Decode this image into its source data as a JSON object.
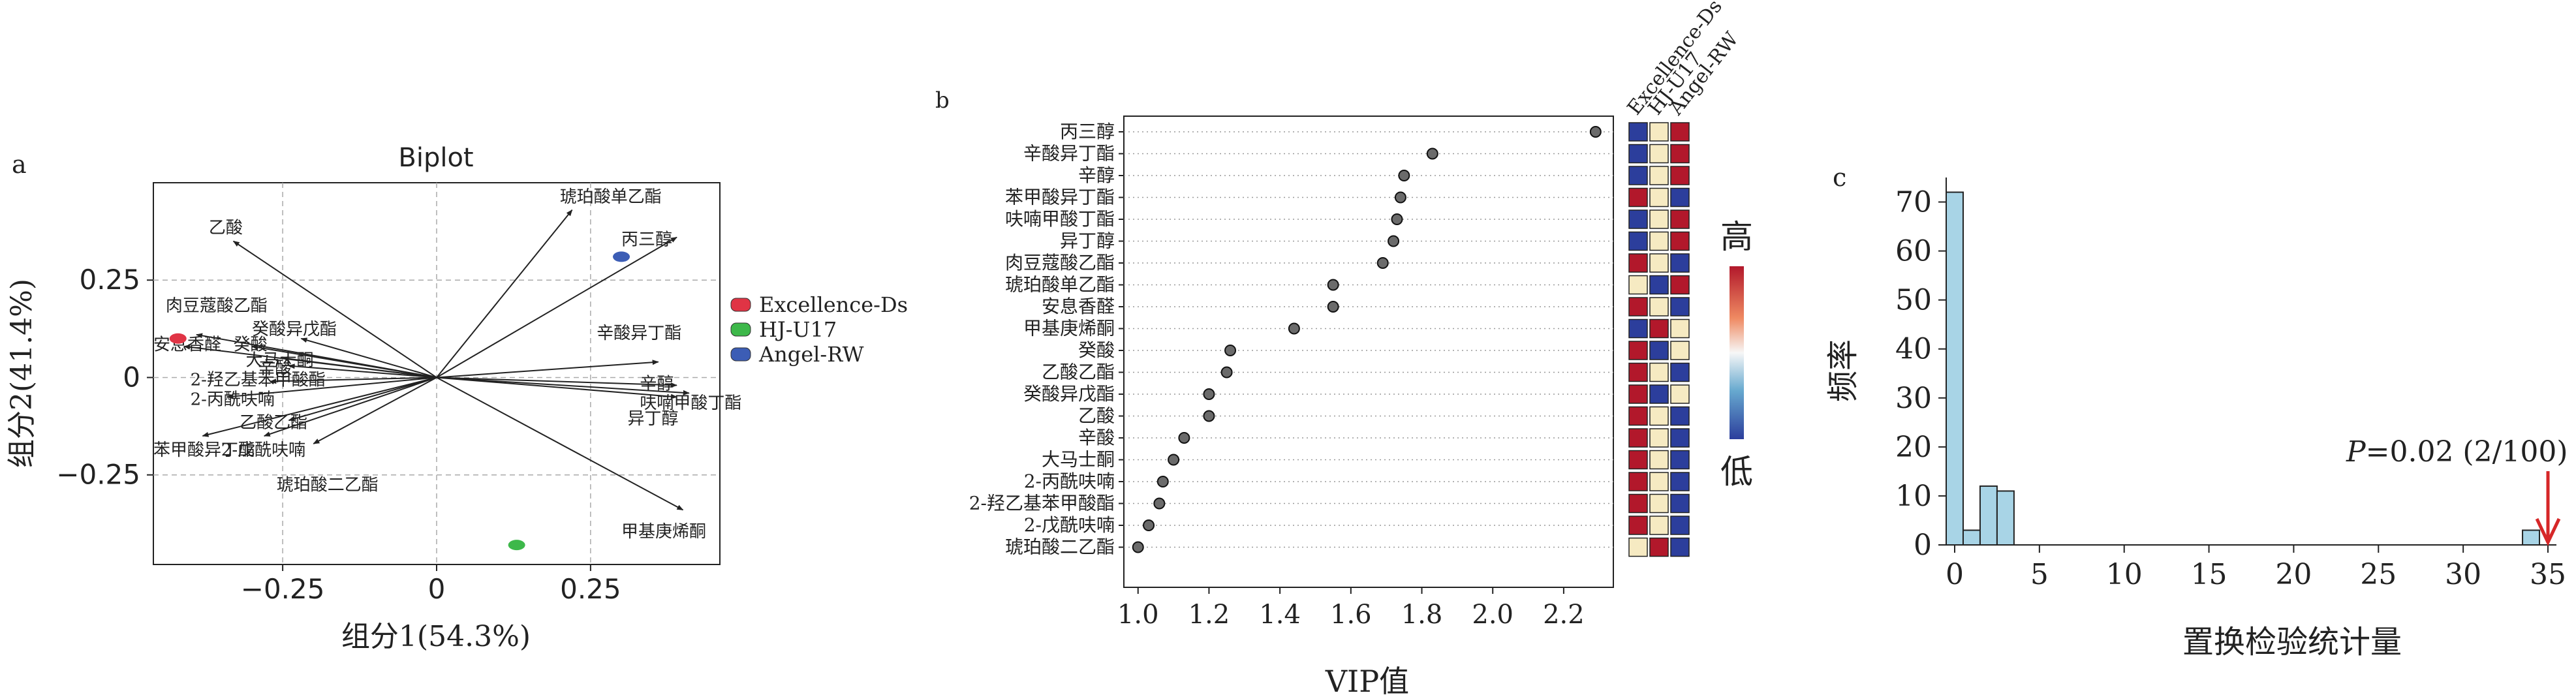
{
  "panel_a": {
    "panel_label": "a",
    "chart_data": {
      "type": "scatter",
      "title": "Biplot",
      "xlabel": "组分1(54.3%)",
      "ylabel": "组分2(41.4%)",
      "xlim": [
        -0.46,
        0.46
      ],
      "ylim": [
        -0.48,
        0.5
      ],
      "xticks": [
        -0.25,
        0,
        0.25
      ],
      "xtick_labels": [
        "−0.25",
        "0",
        "0.25"
      ],
      "yticks": [
        0.25,
        0,
        -0.25
      ],
      "ytick_labels": [
        "0.25",
        "0",
        "−0.25"
      ],
      "grid": "dashed",
      "legend": [
        {
          "name": "Excellence-Ds",
          "color": "#e03445"
        },
        {
          "name": "HJ-U17",
          "color": "#3db84a"
        },
        {
          "name": "Angel-RW",
          "color": "#3c5db5"
        }
      ],
      "points": [
        {
          "series": "Excellence-Ds",
          "x": -0.42,
          "y": 0.1
        },
        {
          "series": "HJ-U17",
          "x": 0.13,
          "y": -0.43
        },
        {
          "series": "Angel-RW",
          "x": 0.3,
          "y": 0.31
        }
      ],
      "loadings": [
        {
          "label": "琥珀酸单乙酯",
          "x": 0.22,
          "y": 0.43,
          "lx": 0.2,
          "ly": 0.45
        },
        {
          "label": "丙三醇",
          "x": 0.39,
          "y": 0.36,
          "lx": 0.3,
          "ly": 0.34
        },
        {
          "label": "乙酸",
          "x": -0.33,
          "y": 0.35,
          "lx": -0.37,
          "ly": 0.37
        },
        {
          "label": "肉豆蔻酸乙酯",
          "x": -0.39,
          "y": 0.11,
          "lx": -0.44,
          "ly": 0.17
        },
        {
          "label": "癸酸异戊酯",
          "x": -0.22,
          "y": 0.1,
          "lx": -0.3,
          "ly": 0.11
        },
        {
          "label": "安息香醛",
          "x": -0.41,
          "y": 0.08,
          "lx": -0.46,
          "ly": 0.07
        },
        {
          "label": "癸酸",
          "x": -0.3,
          "y": 0.08,
          "lx": -0.33,
          "ly": 0.07
        },
        {
          "label": "大马士酮",
          "x": -0.25,
          "y": 0.05,
          "lx": -0.31,
          "ly": 0.03
        },
        {
          "label": "辛酸",
          "x": -0.24,
          "y": 0.03,
          "lx": -0.29,
          "ly": 0.01
        },
        {
          "label": "2-羟乙基苯甲酸酯",
          "x": -0.27,
          "y": -0.01,
          "lx": -0.4,
          "ly": -0.02
        },
        {
          "label": "2-丙酰呋喃",
          "x": -0.34,
          "y": -0.05,
          "lx": -0.4,
          "ly": -0.07
        },
        {
          "label": "乙酸乙酯",
          "x": -0.24,
          "y": -0.11,
          "lx": -0.32,
          "ly": -0.13
        },
        {
          "label": "苯甲酸异丁酯",
          "x": -0.38,
          "y": -0.15,
          "lx": -0.46,
          "ly": -0.2
        },
        {
          "label": "2-戊酰呋喃",
          "x": -0.28,
          "y": -0.15,
          "lx": -0.35,
          "ly": -0.2
        },
        {
          "label": "琥珀酸二乙酯",
          "x": -0.2,
          "y": -0.17,
          "lx": -0.26,
          "ly": -0.29
        },
        {
          "label": "辛酸异丁酯",
          "x": 0.36,
          "y": 0.04,
          "lx": 0.26,
          "ly": 0.1
        },
        {
          "label": "辛醇",
          "x": 0.39,
          "y": -0.02,
          "lx": 0.33,
          "ly": -0.03
        },
        {
          "label": "呋喃甲酸丁酯",
          "x": 0.41,
          "y": -0.04,
          "lx": 0.33,
          "ly": -0.08
        },
        {
          "label": "异丁醇",
          "x": 0.39,
          "y": -0.05,
          "lx": 0.31,
          "ly": -0.12
        },
        {
          "label": "甲基庚烯酮",
          "x": 0.4,
          "y": -0.34,
          "lx": 0.3,
          "ly": -0.41
        }
      ]
    }
  },
  "panel_b": {
    "panel_label": "b",
    "chart_data": {
      "type": "scatter",
      "xlabel": "VIP值",
      "xlim": [
        0.96,
        2.34
      ],
      "xticks": [
        1.0,
        1.2,
        1.4,
        1.6,
        1.8,
        2.0,
        2.2
      ],
      "xtick_labels": [
        "1.0",
        "1.2",
        "1.4",
        "1.6",
        "1.8",
        "2.0",
        "2.2"
      ],
      "categories": [
        "丙三醇",
        "辛酸异丁酯",
        "辛醇",
        "苯甲酸异丁酯",
        "呋喃甲酸丁酯",
        "异丁醇",
        "肉豆蔻酸乙酯",
        "琥珀酸单乙酯",
        "安息香醛",
        "甲基庚烯酮",
        "癸酸",
        "乙酸乙酯",
        "癸酸异戊酯",
        "乙酸",
        "辛酸",
        "大马士酮",
        "2-丙酰呋喃",
        "2-羟乙基苯甲酸酯",
        "2-戊酰呋喃",
        "琥珀酸二乙酯"
      ],
      "values": [
        2.29,
        1.83,
        1.75,
        1.74,
        1.73,
        1.72,
        1.69,
        1.55,
        1.55,
        1.44,
        1.26,
        1.25,
        1.2,
        1.2,
        1.13,
        1.1,
        1.07,
        1.06,
        1.03,
        1.0
      ],
      "heatmap_columns": [
        "Excellence-Ds",
        "HJ-U17",
        "Angel-RW"
      ],
      "heatmap_levels": [
        [
          "low",
          "mid",
          "high"
        ],
        [
          "low",
          "mid",
          "high"
        ],
        [
          "low",
          "mid",
          "high"
        ],
        [
          "high",
          "mid",
          "low"
        ],
        [
          "low",
          "mid",
          "high"
        ],
        [
          "low",
          "mid",
          "high"
        ],
        [
          "high",
          "mid",
          "low"
        ],
        [
          "mid",
          "low",
          "high"
        ],
        [
          "high",
          "mid",
          "low"
        ],
        [
          "low",
          "high",
          "mid"
        ],
        [
          "high",
          "low",
          "mid"
        ],
        [
          "high",
          "mid",
          "low"
        ],
        [
          "high",
          "low",
          "mid"
        ],
        [
          "high",
          "mid",
          "low"
        ],
        [
          "high",
          "mid",
          "low"
        ],
        [
          "high",
          "mid",
          "low"
        ],
        [
          "high",
          "mid",
          "low"
        ],
        [
          "high",
          "mid",
          "low"
        ],
        [
          "high",
          "mid",
          "low"
        ],
        [
          "mid",
          "high",
          "low"
        ]
      ],
      "heatmap_colors": {
        "high": "#b2182b",
        "mid": "#f6eac2",
        "low": "#2c3e9c"
      },
      "colorbar": {
        "high_label": "高",
        "low_label": "低"
      }
    }
  },
  "panel_c": {
    "panel_label": "c",
    "chart_data": {
      "type": "bar",
      "xlabel": "置换检验统计量",
      "ylabel": "频率",
      "xlim": [
        -0.5,
        35.5
      ],
      "ylim": [
        0,
        75
      ],
      "xticks": [
        0,
        5,
        10,
        15,
        20,
        25,
        30,
        35
      ],
      "yticks": [
        0,
        10,
        20,
        30,
        40,
        50,
        60,
        70
      ],
      "bins": [
        {
          "x0": 0,
          "x1": 1,
          "count": 72
        },
        {
          "x0": 1,
          "x1": 2,
          "count": 3
        },
        {
          "x0": 2,
          "x1": 3,
          "count": 12
        },
        {
          "x0": 3,
          "x1": 4,
          "count": 11
        },
        {
          "x0": 34,
          "x1": 35,
          "count": 3
        }
      ],
      "bar_color": "#a8d4e6",
      "observed_statistic": 35,
      "annotation_p": "P",
      "annotation_rest": "=0.02 (2/100)",
      "arrow_color": "#d62728"
    }
  }
}
